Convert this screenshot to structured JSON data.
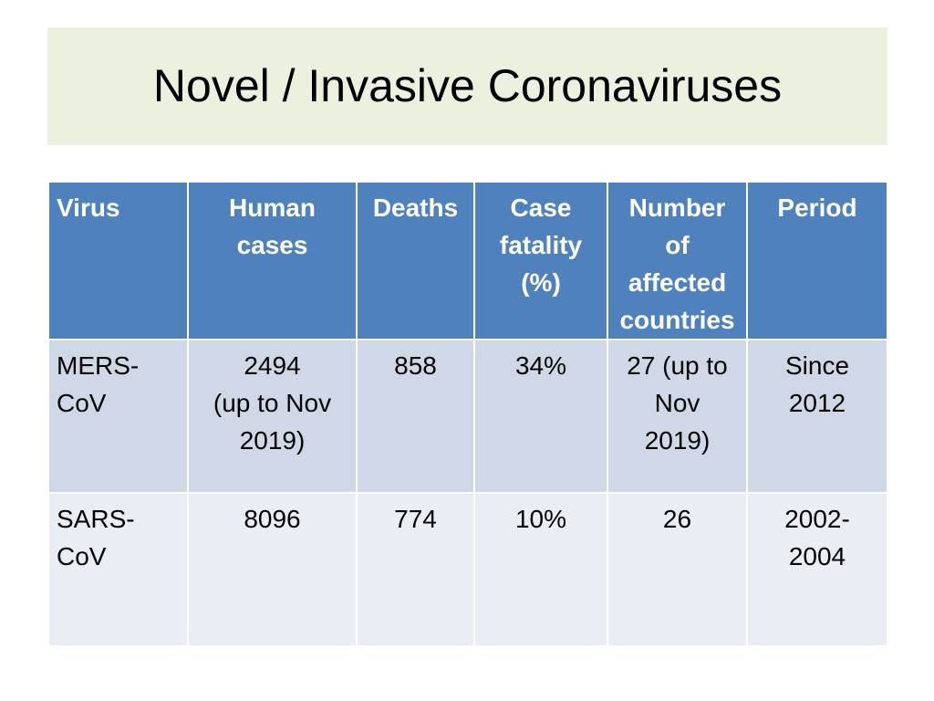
{
  "slide": {
    "title": "Novel / Invasive Coronaviruses"
  },
  "table": {
    "headers": [
      "Virus",
      "Human\ncases",
      "Deaths",
      "Case\nfatality\n(%)",
      "Number\nof\naffected\ncountries",
      "Period"
    ],
    "rows": [
      [
        "MERS-\nCoV",
        "2494\n(up to Nov\n2019)",
        "858",
        "34%",
        "27 (up to\nNov\n2019)",
        "Since\n2012"
      ],
      [
        "SARS-\nCoV",
        "8096",
        "774",
        "10%",
        "26",
        "2002-\n2004"
      ]
    ]
  },
  "colors": {
    "title_band": "#ebf1de",
    "header_bg": "#4f81bd",
    "row_odd_bg": "#d0d8e8",
    "row_even_bg": "#e9edf4"
  }
}
